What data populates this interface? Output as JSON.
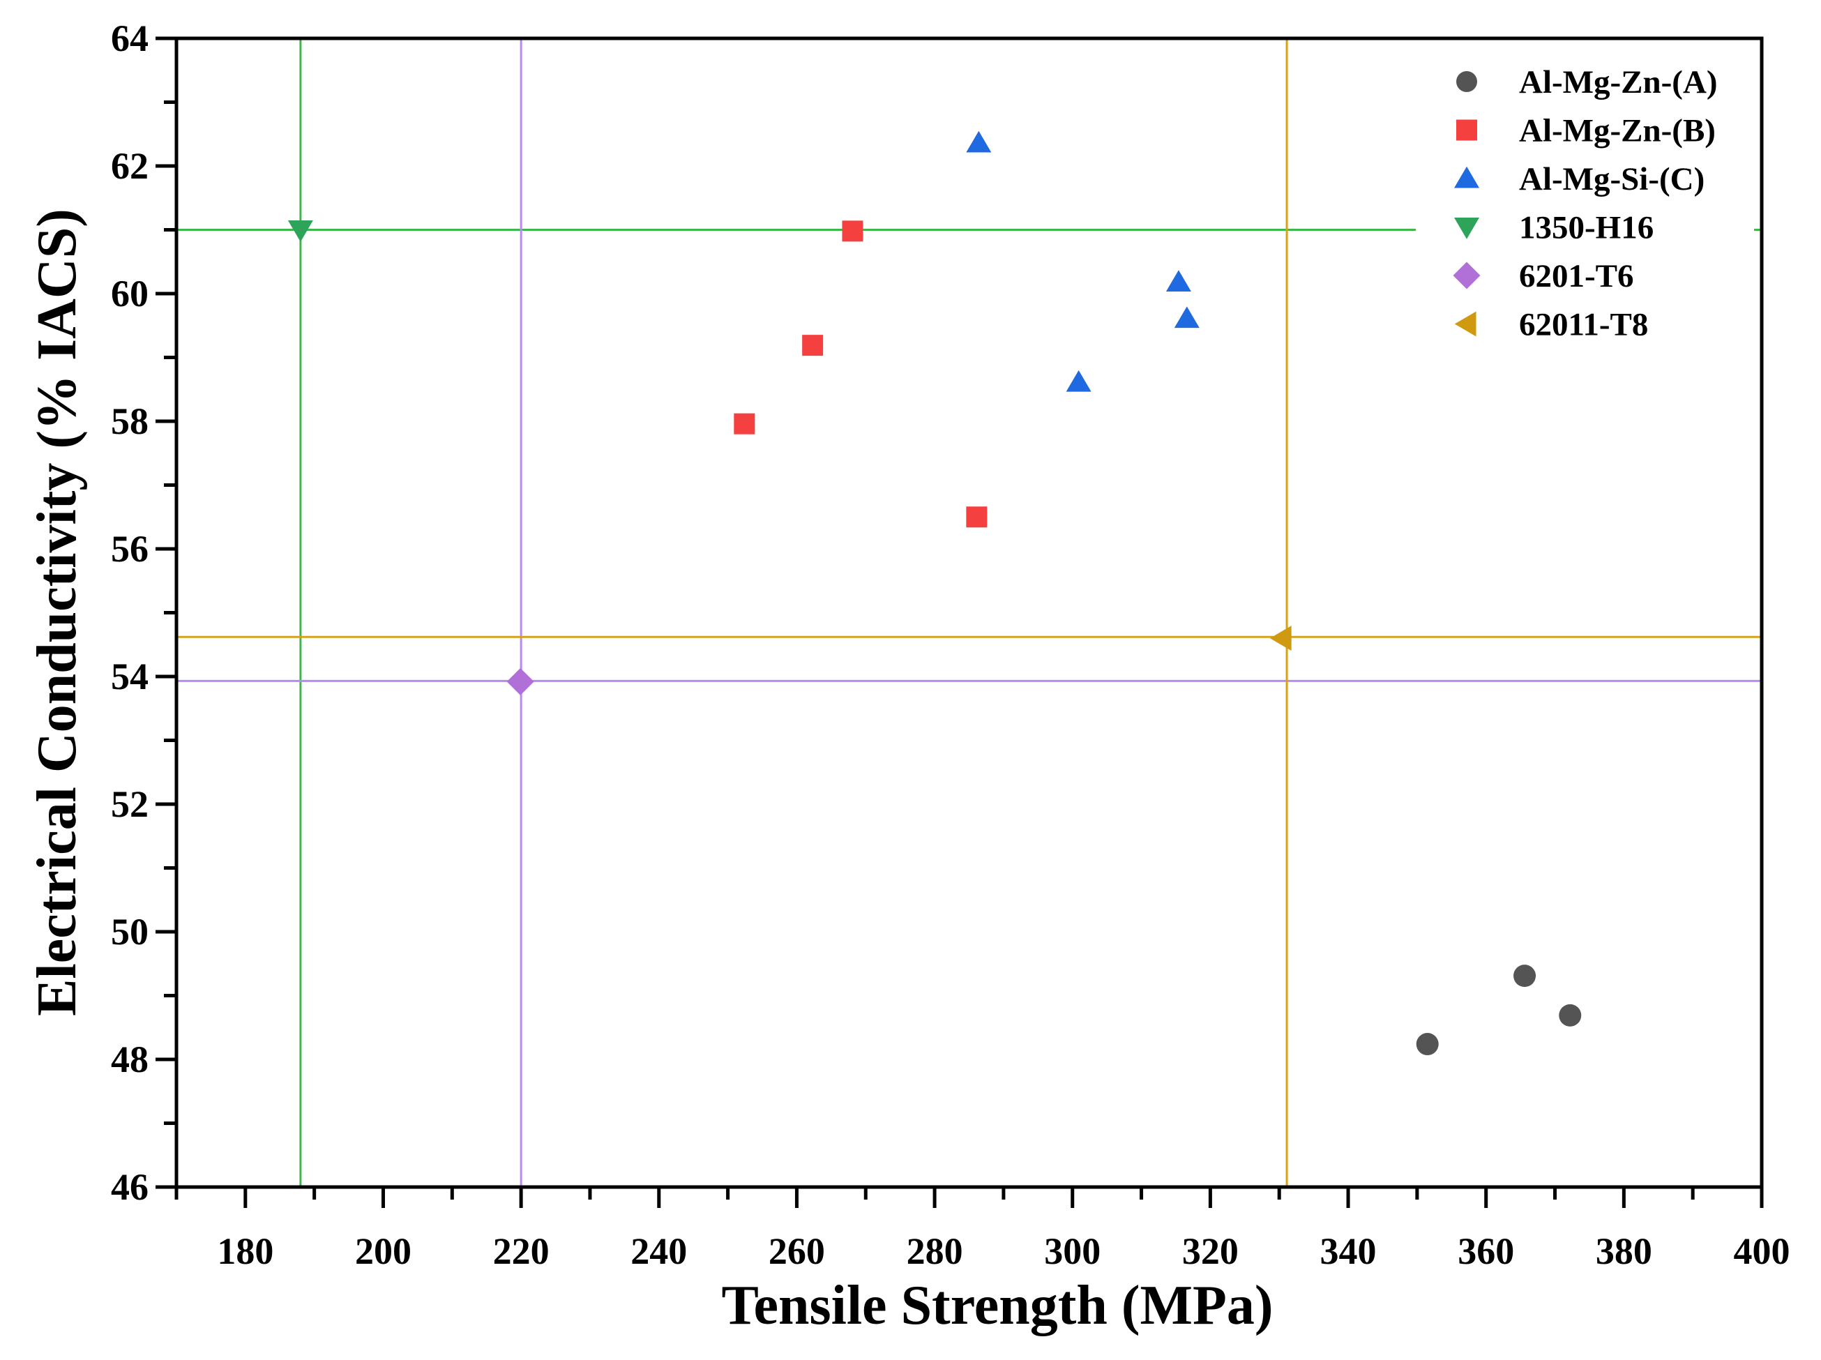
{
  "chart_data": {
    "type": "scatter",
    "title": "",
    "xlabel": "Tensile Strength (MPa)",
    "ylabel": "Electrical Conductivity (% IACS)",
    "xlim": [
      170,
      400
    ],
    "ylim": [
      46,
      64
    ],
    "xticks": [
      180,
      200,
      220,
      240,
      260,
      280,
      300,
      320,
      340,
      360,
      380,
      400
    ],
    "yticks": [
      46,
      48,
      50,
      52,
      54,
      56,
      58,
      60,
      62,
      64
    ],
    "grid": false,
    "legend_position": "top-right",
    "series": [
      {
        "name": "Al-Mg-Zn-(A)",
        "marker": "circle",
        "color": "#545454",
        "points": [
          [
            351.5,
            48.24
          ],
          [
            365.6,
            49.31
          ],
          [
            372.2,
            48.69
          ]
        ]
      },
      {
        "name": "Al-Mg-Zn-(B)",
        "marker": "square",
        "color": "#f54040",
        "points": [
          [
            252.4,
            57.96
          ],
          [
            262.3,
            59.19
          ],
          [
            268.1,
            60.98
          ],
          [
            286.1,
            56.5
          ]
        ]
      },
      {
        "name": "Al-Mg-Si-(C)",
        "marker": "triangle-up",
        "color": "#1f6ae0",
        "points": [
          [
            286.4,
            62.36
          ],
          [
            315.4,
            60.18
          ],
          [
            316.6,
            59.61
          ],
          [
            300.9,
            58.61
          ]
        ]
      },
      {
        "name": "1350-H16",
        "marker": "triangle-down",
        "color": "#2ea35a",
        "points": [
          [
            188.0,
            61.0
          ]
        ]
      },
      {
        "name": "6201-T6",
        "marker": "diamond",
        "color": "#b070d8",
        "points": [
          [
            219.9,
            53.92
          ]
        ]
      },
      {
        "name": "62011-T8",
        "marker": "triangle-left",
        "color": "#d09a10",
        "points": [
          [
            330.4,
            54.6
          ]
        ]
      }
    ],
    "reference_lines": [
      {
        "series": "1350-H16",
        "x": 188.0,
        "y": 61.0,
        "color": "#3cb84a"
      },
      {
        "series": "6201-T6",
        "x": 220.0,
        "y": 53.93,
        "color": "#b88af0"
      },
      {
        "series": "62011-T8",
        "x": 331.1,
        "y": 54.62,
        "color": "#d6a21a"
      }
    ]
  }
}
